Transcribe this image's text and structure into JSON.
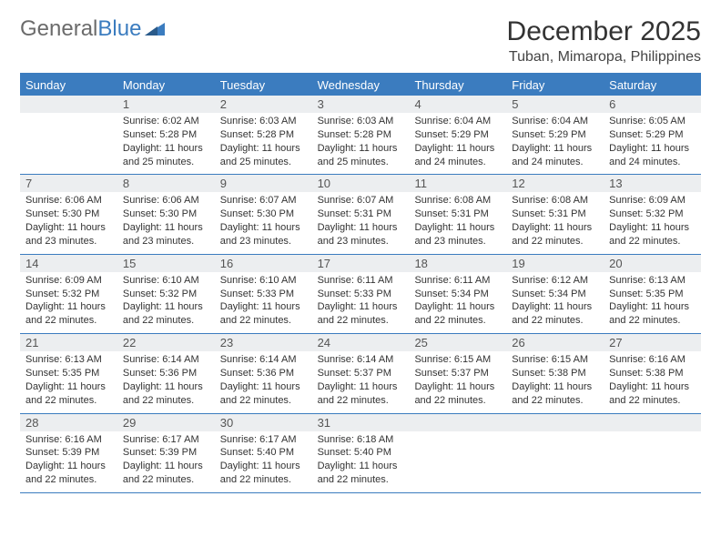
{
  "brand": {
    "part1": "General",
    "part2": "Blue"
  },
  "title": "December 2025",
  "location": "Tuban, Mimaropa, Philippines",
  "colors": {
    "accent": "#3b7cbf",
    "header_bg": "#3b7cbf",
    "header_text": "#ffffff",
    "daynum_bg": "#eceef0",
    "text": "#333333",
    "logo_gray": "#6b6b6b"
  },
  "typography": {
    "title_fontsize": 30,
    "location_fontsize": 16,
    "dayhead_fontsize": 13,
    "body_fontsize": 11
  },
  "day_headers": [
    "Sunday",
    "Monday",
    "Tuesday",
    "Wednesday",
    "Thursday",
    "Friday",
    "Saturday"
  ],
  "weeks": [
    [
      {
        "num": "",
        "sunrise": "",
        "sunset": "",
        "daylight": ""
      },
      {
        "num": "1",
        "sunrise": "6:02 AM",
        "sunset": "5:28 PM",
        "daylight": "11 hours and 25 minutes."
      },
      {
        "num": "2",
        "sunrise": "6:03 AM",
        "sunset": "5:28 PM",
        "daylight": "11 hours and 25 minutes."
      },
      {
        "num": "3",
        "sunrise": "6:03 AM",
        "sunset": "5:28 PM",
        "daylight": "11 hours and 25 minutes."
      },
      {
        "num": "4",
        "sunrise": "6:04 AM",
        "sunset": "5:29 PM",
        "daylight": "11 hours and 24 minutes."
      },
      {
        "num": "5",
        "sunrise": "6:04 AM",
        "sunset": "5:29 PM",
        "daylight": "11 hours and 24 minutes."
      },
      {
        "num": "6",
        "sunrise": "6:05 AM",
        "sunset": "5:29 PM",
        "daylight": "11 hours and 24 minutes."
      }
    ],
    [
      {
        "num": "7",
        "sunrise": "6:06 AM",
        "sunset": "5:30 PM",
        "daylight": "11 hours and 23 minutes."
      },
      {
        "num": "8",
        "sunrise": "6:06 AM",
        "sunset": "5:30 PM",
        "daylight": "11 hours and 23 minutes."
      },
      {
        "num": "9",
        "sunrise": "6:07 AM",
        "sunset": "5:30 PM",
        "daylight": "11 hours and 23 minutes."
      },
      {
        "num": "10",
        "sunrise": "6:07 AM",
        "sunset": "5:31 PM",
        "daylight": "11 hours and 23 minutes."
      },
      {
        "num": "11",
        "sunrise": "6:08 AM",
        "sunset": "5:31 PM",
        "daylight": "11 hours and 23 minutes."
      },
      {
        "num": "12",
        "sunrise": "6:08 AM",
        "sunset": "5:31 PM",
        "daylight": "11 hours and 22 minutes."
      },
      {
        "num": "13",
        "sunrise": "6:09 AM",
        "sunset": "5:32 PM",
        "daylight": "11 hours and 22 minutes."
      }
    ],
    [
      {
        "num": "14",
        "sunrise": "6:09 AM",
        "sunset": "5:32 PM",
        "daylight": "11 hours and 22 minutes."
      },
      {
        "num": "15",
        "sunrise": "6:10 AM",
        "sunset": "5:32 PM",
        "daylight": "11 hours and 22 minutes."
      },
      {
        "num": "16",
        "sunrise": "6:10 AM",
        "sunset": "5:33 PM",
        "daylight": "11 hours and 22 minutes."
      },
      {
        "num": "17",
        "sunrise": "6:11 AM",
        "sunset": "5:33 PM",
        "daylight": "11 hours and 22 minutes."
      },
      {
        "num": "18",
        "sunrise": "6:11 AM",
        "sunset": "5:34 PM",
        "daylight": "11 hours and 22 minutes."
      },
      {
        "num": "19",
        "sunrise": "6:12 AM",
        "sunset": "5:34 PM",
        "daylight": "11 hours and 22 minutes."
      },
      {
        "num": "20",
        "sunrise": "6:13 AM",
        "sunset": "5:35 PM",
        "daylight": "11 hours and 22 minutes."
      }
    ],
    [
      {
        "num": "21",
        "sunrise": "6:13 AM",
        "sunset": "5:35 PM",
        "daylight": "11 hours and 22 minutes."
      },
      {
        "num": "22",
        "sunrise": "6:14 AM",
        "sunset": "5:36 PM",
        "daylight": "11 hours and 22 minutes."
      },
      {
        "num": "23",
        "sunrise": "6:14 AM",
        "sunset": "5:36 PM",
        "daylight": "11 hours and 22 minutes."
      },
      {
        "num": "24",
        "sunrise": "6:14 AM",
        "sunset": "5:37 PM",
        "daylight": "11 hours and 22 minutes."
      },
      {
        "num": "25",
        "sunrise": "6:15 AM",
        "sunset": "5:37 PM",
        "daylight": "11 hours and 22 minutes."
      },
      {
        "num": "26",
        "sunrise": "6:15 AM",
        "sunset": "5:38 PM",
        "daylight": "11 hours and 22 minutes."
      },
      {
        "num": "27",
        "sunrise": "6:16 AM",
        "sunset": "5:38 PM",
        "daylight": "11 hours and 22 minutes."
      }
    ],
    [
      {
        "num": "28",
        "sunrise": "6:16 AM",
        "sunset": "5:39 PM",
        "daylight": "11 hours and 22 minutes."
      },
      {
        "num": "29",
        "sunrise": "6:17 AM",
        "sunset": "5:39 PM",
        "daylight": "11 hours and 22 minutes."
      },
      {
        "num": "30",
        "sunrise": "6:17 AM",
        "sunset": "5:40 PM",
        "daylight": "11 hours and 22 minutes."
      },
      {
        "num": "31",
        "sunrise": "6:18 AM",
        "sunset": "5:40 PM",
        "daylight": "11 hours and 22 minutes."
      },
      {
        "num": "",
        "sunrise": "",
        "sunset": "",
        "daylight": ""
      },
      {
        "num": "",
        "sunrise": "",
        "sunset": "",
        "daylight": ""
      },
      {
        "num": "",
        "sunrise": "",
        "sunset": "",
        "daylight": ""
      }
    ]
  ],
  "labels": {
    "sunrise_prefix": "Sunrise: ",
    "sunset_prefix": "Sunset: ",
    "daylight_prefix": "Daylight: "
  }
}
